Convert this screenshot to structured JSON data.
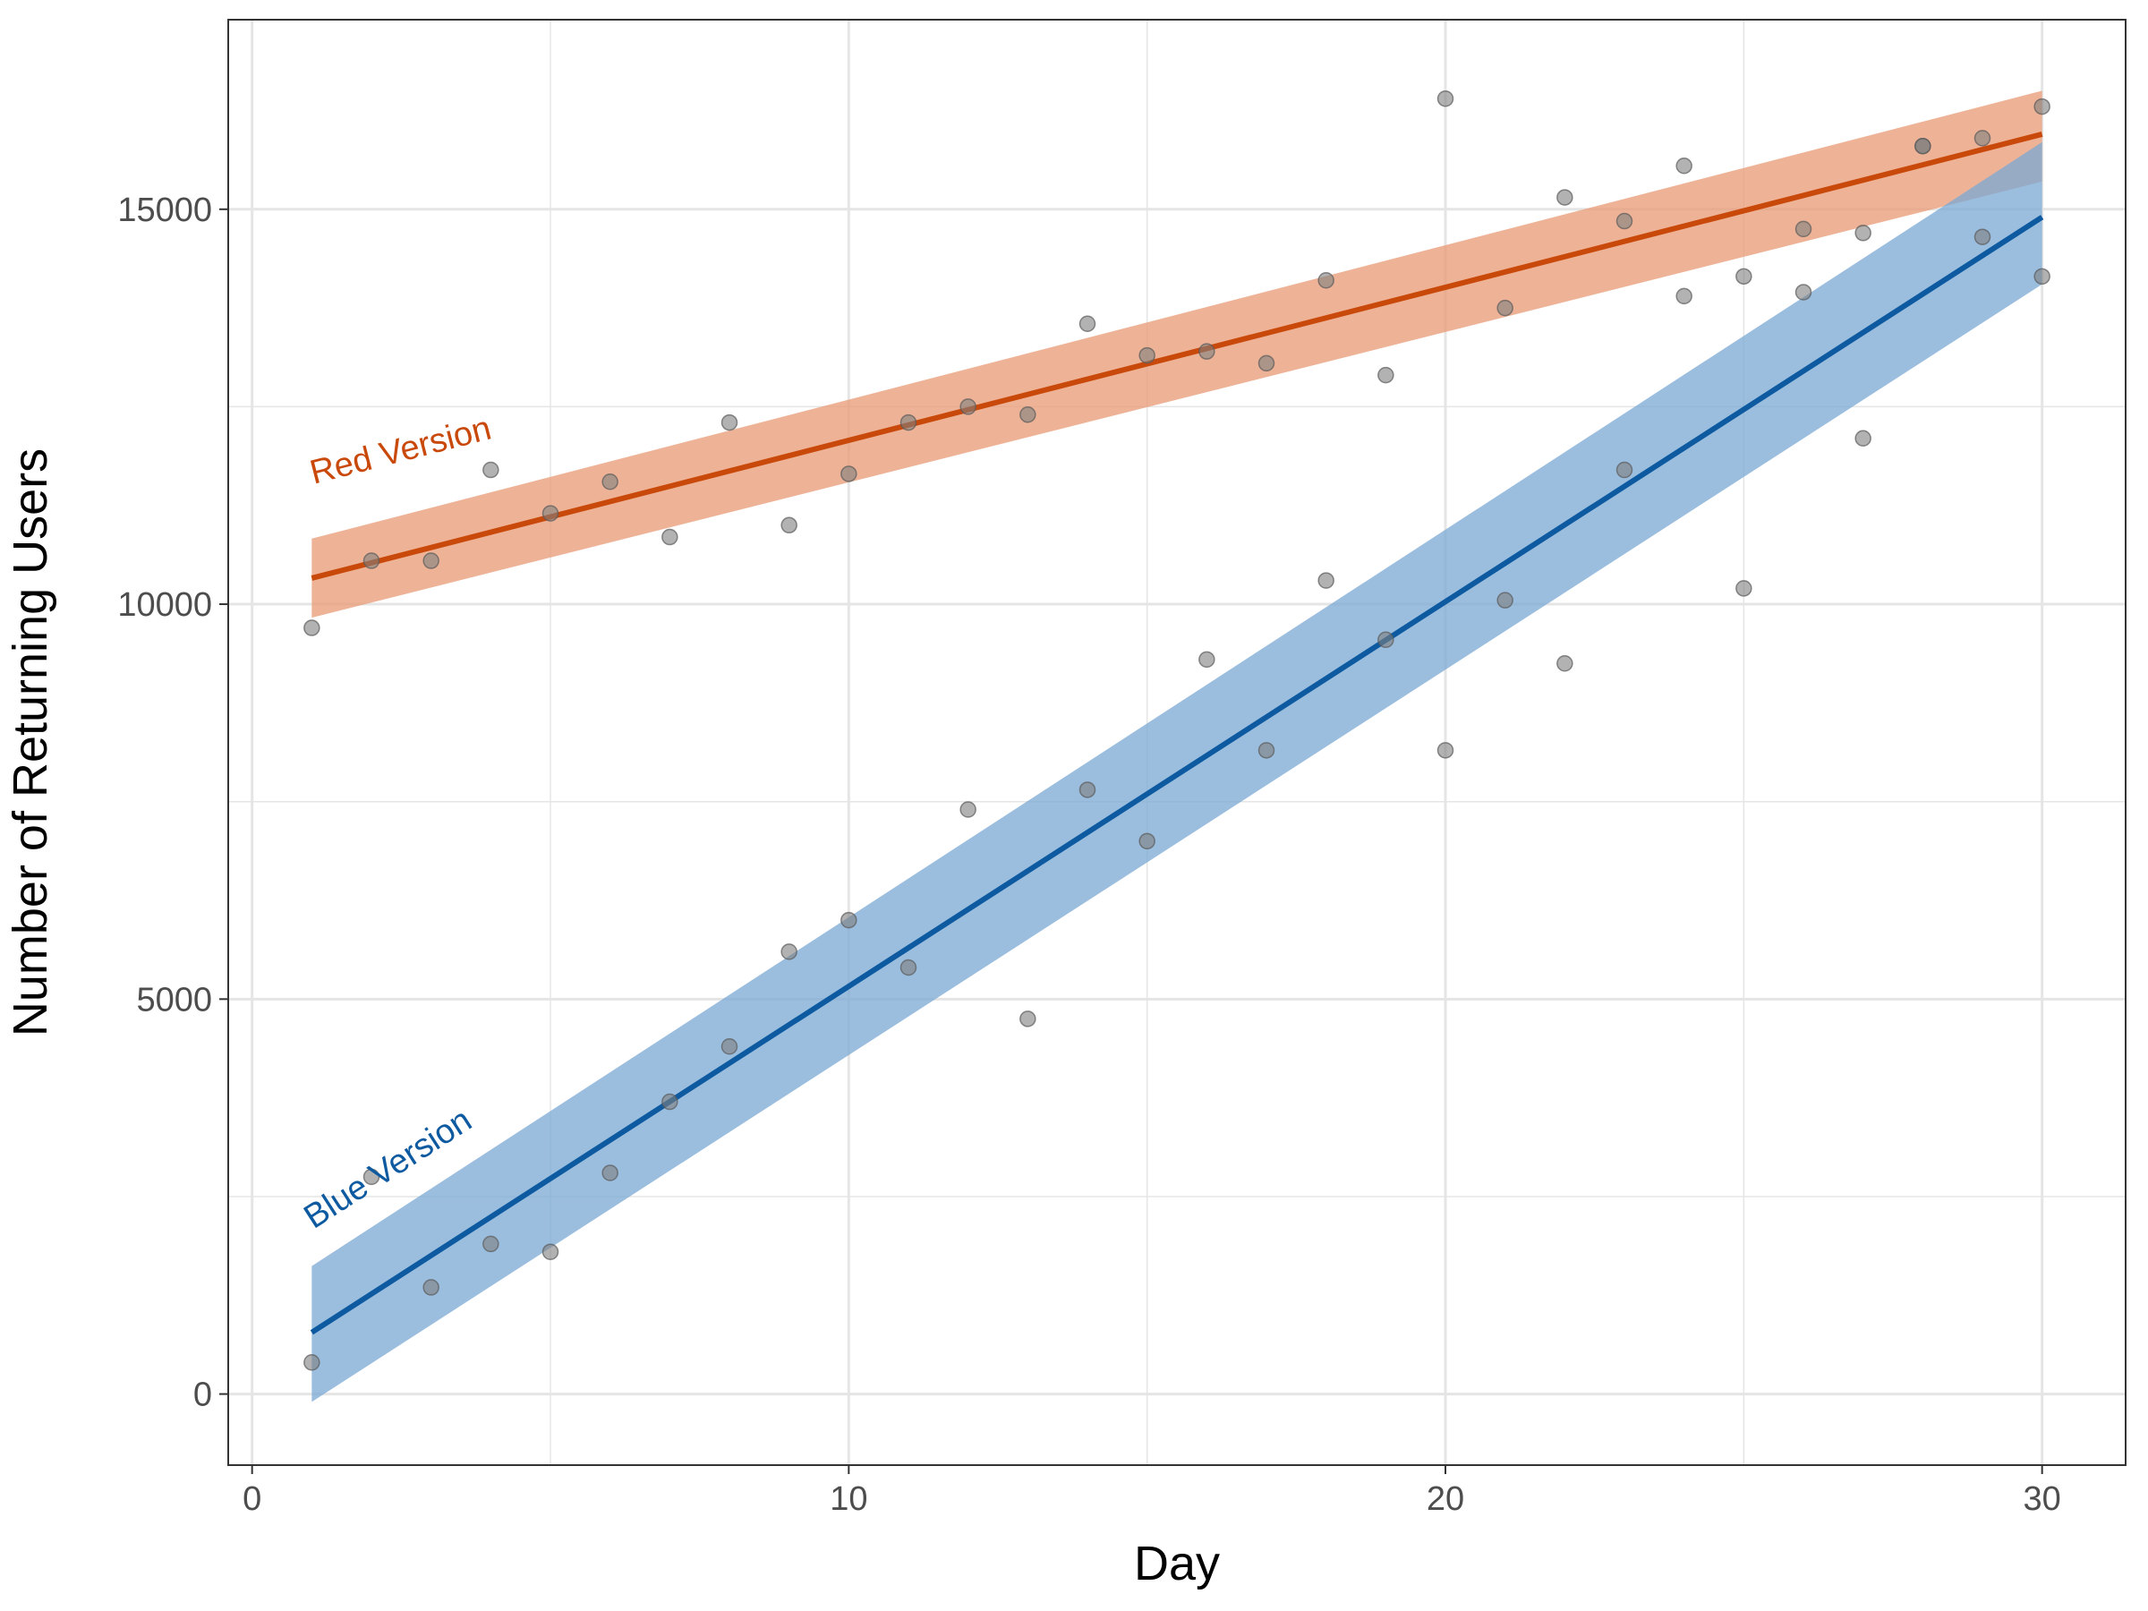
{
  "chart_data": {
    "type": "scatter",
    "title": "",
    "xlabel": "Day",
    "ylabel": "Number of Returning Users",
    "xlim": [
      -0.4,
      31.4
    ],
    "ylim": [
      -900,
      17400
    ],
    "x_ticks": [
      0,
      10,
      20,
      30
    ],
    "y_ticks": [
      0,
      5000,
      10000,
      15000
    ],
    "x_tick_labels": [
      "0",
      "10",
      "20",
      "30"
    ],
    "y_tick_labels": [
      "0",
      "5000",
      "10000",
      "15000"
    ],
    "grid": true,
    "legend": "none",
    "colors": {
      "points": "#7f7f7f",
      "grid": "#e5e5e5",
      "border": "#333333"
    },
    "series": [
      {
        "name": "Red Version",
        "color": "#c9490b",
        "band_color": "#e89a74",
        "fit": {
          "x": [
            1,
            30
          ],
          "y": [
            10330,
            15950
          ]
        },
        "band": {
          "lower": [
            9830,
            15350
          ],
          "upper": [
            10830,
            16500
          ]
        },
        "points": [
          [
            1,
            9700
          ],
          [
            2,
            10550
          ],
          [
            3,
            10550
          ],
          [
            4,
            11700
          ],
          [
            5,
            11150
          ],
          [
            6,
            11550
          ],
          [
            7,
            10850
          ],
          [
            8,
            12300
          ],
          [
            9,
            11000
          ],
          [
            10,
            11650
          ],
          [
            11,
            12300
          ],
          [
            12,
            12500
          ],
          [
            13,
            12400
          ],
          [
            14,
            13550
          ],
          [
            15,
            13150
          ],
          [
            16,
            13200
          ],
          [
            17,
            13050
          ],
          [
            18,
            14100
          ],
          [
            19,
            12900
          ],
          [
            20,
            16400
          ],
          [
            21,
            13750
          ],
          [
            22,
            15150
          ],
          [
            23,
            14850
          ],
          [
            24,
            15550
          ],
          [
            25,
            14150
          ],
          [
            26,
            14750
          ],
          [
            27,
            14700
          ],
          [
            28,
            15800
          ],
          [
            29,
            15900
          ],
          [
            30,
            16300
          ]
        ]
      },
      {
        "name": "Blue Version",
        "color": "#0d5aa0",
        "band_color": "#7aa8d4",
        "fit": {
          "x": [
            1,
            30
          ],
          "y": [
            780,
            14900
          ]
        },
        "band": {
          "lower": [
            -100,
            14050
          ],
          "upper": [
            1620,
            15850
          ]
        },
        "points": [
          [
            1,
            400
          ],
          [
            2,
            2750
          ],
          [
            3,
            1350
          ],
          [
            4,
            1900
          ],
          [
            5,
            1800
          ],
          [
            6,
            2800
          ],
          [
            7,
            3700
          ],
          [
            8,
            4400
          ],
          [
            9,
            5600
          ],
          [
            10,
            6000
          ],
          [
            11,
            5400
          ],
          [
            12,
            7400
          ],
          [
            13,
            4750
          ],
          [
            14,
            7650
          ],
          [
            15,
            7000
          ],
          [
            16,
            9300
          ],
          [
            17,
            8150
          ],
          [
            18,
            10300
          ],
          [
            19,
            9550
          ],
          [
            20,
            8150
          ],
          [
            21,
            10050
          ],
          [
            22,
            9250
          ],
          [
            23,
            11700
          ],
          [
            24,
            13900
          ],
          [
            25,
            10200
          ],
          [
            26,
            13950
          ],
          [
            27,
            12100
          ],
          [
            28,
            15800
          ],
          [
            29,
            14650
          ],
          [
            30,
            14150
          ]
        ]
      }
    ]
  }
}
